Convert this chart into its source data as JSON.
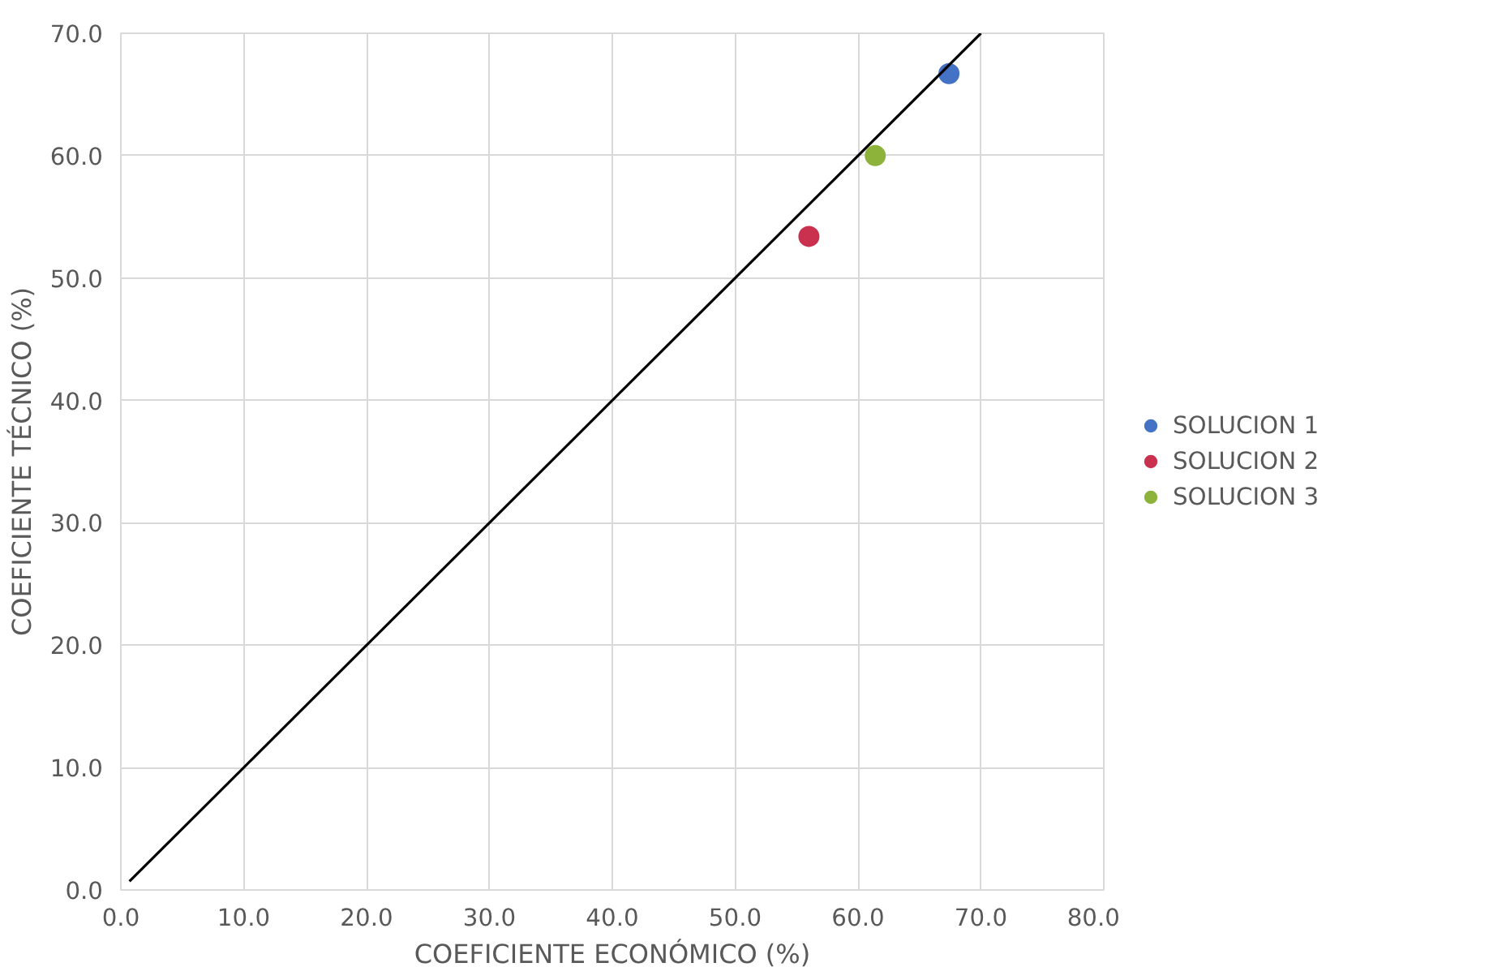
{
  "chart_data": {
    "type": "scatter",
    "xlabel": "COEFICIENTE ECONÓMICO (%)",
    "ylabel": "COEFICIENTE TÉCNICO (%)",
    "xlim": [
      0,
      80
    ],
    "ylim": [
      0,
      70
    ],
    "xticks": [
      {
        "value": 0,
        "label": "0.0"
      },
      {
        "value": 10,
        "label": "10.0"
      },
      {
        "value": 20,
        "label": "20.0"
      },
      {
        "value": 30,
        "label": "30.0"
      },
      {
        "value": 40,
        "label": "40.0"
      },
      {
        "value": 50,
        "label": "50.0"
      },
      {
        "value": 60,
        "label": "60.0"
      },
      {
        "value": 70,
        "label": "70.0"
      },
      {
        "value": 80,
        "label": "80.0"
      }
    ],
    "yticks": [
      {
        "value": 0,
        "label": "0.0"
      },
      {
        "value": 10,
        "label": "10.0"
      },
      {
        "value": 20,
        "label": "20.0"
      },
      {
        "value": 30,
        "label": "30.0"
      },
      {
        "value": 40,
        "label": "40.0"
      },
      {
        "value": 50,
        "label": "50.0"
      },
      {
        "value": 60,
        "label": "60.0"
      },
      {
        "value": 70,
        "label": "70.0"
      }
    ],
    "grid": true,
    "legend": "right",
    "marker": "circle",
    "series": [
      {
        "name": "SOLUCION 1",
        "color": "#4472c4",
        "x": [
          67.4
        ],
        "values": [
          66.7
        ]
      },
      {
        "name": "SOLUCION 2",
        "color": "#c9314f",
        "x": [
          56.0
        ],
        "values": [
          53.4
        ]
      },
      {
        "name": "SOLUCION 3",
        "color": "#8db33a",
        "x": [
          61.4
        ],
        "values": [
          60.0
        ]
      },
      {
        "type": "line",
        "color": "#000000",
        "x": [
          0.7,
          70
        ],
        "values": [
          0.7,
          70
        ],
        "marker": "none"
      }
    ]
  }
}
